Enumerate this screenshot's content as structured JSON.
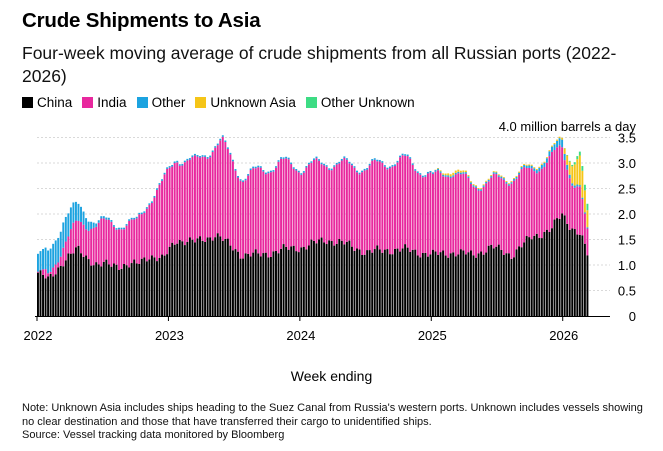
{
  "title": "Crude Shipments to Asia",
  "subtitle": "Four-week moving average of crude shipments from all Russian ports (2022-2026)",
  "legend": [
    {
      "label": "China",
      "color": "#000000"
    },
    {
      "label": "India",
      "color": "#e8289e"
    },
    {
      "label": "Other",
      "color": "#1ca3e0"
    },
    {
      "label": "Unknown Asia",
      "color": "#f5c518"
    },
    {
      "label": "Other Unknown",
      "color": "#3ddc84"
    }
  ],
  "footer": {
    "note": "Note: Unknown Asia includes ships heading to the Suez Canal from Russia's western ports. Unknown includes vessels showing no clear destination and those that have transferred their cargo to unidentified ships.",
    "source": "Source: Vessel tracking data monitored by Bloomberg"
  },
  "chart_data": {
    "type": "bar",
    "stacked": true,
    "title": "Crude Shipments to Asia",
    "xlabel": "Week ending",
    "ylabel": "million barrels a day",
    "unit_label": "4.0 million barrels a day",
    "ylim": [
      0,
      4.0
    ],
    "yticks": [
      0,
      0.5,
      1.0,
      1.5,
      2.0,
      2.5,
      3.0,
      3.5
    ],
    "ytick_labels": [
      "0",
      "0.5",
      "1.0",
      "1.5",
      "2.0",
      "2.5",
      "3.0",
      "3.5"
    ],
    "x_start": 2022.0,
    "x_end": 2026.2,
    "xticks": [
      2022,
      2023,
      2024,
      2025,
      2026
    ],
    "xtick_labels": [
      "2022",
      "2023",
      "2024",
      "2025",
      "2026"
    ],
    "series_order": [
      "China",
      "India",
      "Other",
      "Unknown Asia",
      "Other Unknown"
    ],
    "keyframes": {
      "t": [
        2022.0,
        2022.08,
        2022.2,
        2022.3,
        2022.45,
        2022.6,
        2022.75,
        2022.85,
        2022.95,
        2023.05,
        2023.2,
        2023.35,
        2023.4,
        2023.55,
        2023.7,
        2023.85,
        2024.0,
        2024.2,
        2024.35,
        2024.5,
        2024.65,
        2024.8,
        2025.0,
        2025.15,
        2025.3,
        2025.45,
        2025.6,
        2025.75,
        2025.9,
        2025.98,
        2026.05,
        2026.12,
        2026.2
      ],
      "China": [
        0.85,
        0.7,
        1.1,
        1.3,
        1.0,
        1.0,
        1.0,
        1.2,
        1.1,
        1.5,
        1.45,
        1.6,
        1.5,
        1.2,
        1.2,
        1.3,
        1.35,
        1.5,
        1.4,
        1.25,
        1.3,
        1.3,
        1.2,
        1.25,
        1.2,
        1.35,
        1.2,
        1.55,
        1.7,
        2.0,
        1.75,
        1.6,
        1.0
      ],
      "India": [
        0.0,
        0.05,
        0.35,
        0.5,
        0.8,
        0.8,
        0.8,
        1.1,
        1.5,
        1.6,
        1.55,
        1.75,
        1.9,
        1.5,
        1.65,
        1.7,
        1.55,
        1.5,
        1.55,
        1.65,
        1.7,
        1.75,
        1.5,
        1.6,
        1.35,
        1.3,
        1.5,
        1.3,
        1.4,
        1.3,
        0.95,
        0.85,
        0.15
      ],
      "Other": [
        0.35,
        0.45,
        0.5,
        0.35,
        0.05,
        0.03,
        0.03,
        0.03,
        0.03,
        0.03,
        0.03,
        0.03,
        0.03,
        0.03,
        0.03,
        0.03,
        0.03,
        0.03,
        0.03,
        0.03,
        0.03,
        0.03,
        0.03,
        0.03,
        0.03,
        0.03,
        0.03,
        0.05,
        0.1,
        0.15,
        0.05,
        0.03,
        0.02
      ],
      "Unknown Asia": [
        0,
        0,
        0,
        0,
        0,
        0,
        0,
        0,
        0,
        0,
        0,
        0,
        0,
        0,
        0,
        0,
        0,
        0,
        0,
        0,
        0,
        0,
        0,
        0.05,
        0.02,
        0.02,
        0.02,
        0.02,
        0.02,
        0.03,
        0.3,
        0.6,
        0.2
      ],
      "Other Unknown": [
        0,
        0,
        0,
        0,
        0,
        0,
        0,
        0,
        0,
        0,
        0,
        0,
        0,
        0,
        0,
        0,
        0,
        0,
        0,
        0,
        0,
        0,
        0,
        0,
        0,
        0,
        0,
        0,
        0,
        0,
        0.02,
        0.08,
        0.15
      ]
    }
  }
}
